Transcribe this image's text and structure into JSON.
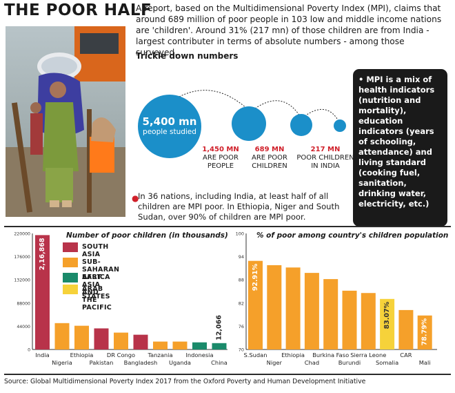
{
  "title": "THE POOR HALF",
  "intro": "A report, based on the Multidimensional Poverty Index (MPI), claims that around 689 million of poor people in 103 low and middle income nations are 'children'. Around 31% (217 mn) of those children are from India - largest contributer in terms of absolute numbers - among those surveyed.",
  "trickle": {
    "heading": "Trickle down numbers",
    "people_value": "5,400 mn",
    "people_label": "people studied",
    "items": [
      {
        "value": "1,450 MN",
        "label1": "ARE POOR",
        "label2": "PEOPLE"
      },
      {
        "value": "689 MN",
        "label1": "ARE POOR",
        "label2": "CHILDREN"
      },
      {
        "value": "217 MN",
        "label1": "POOR CHILDREN",
        "label2": "IN INDIA"
      }
    ]
  },
  "mpi_note": "• MPI is a mix of health indicators (nutrition and mortality), education indicators (years of schooling, attendance) and living standard (cooking fuel, sanitation, drinking water, electricity, etc.)",
  "nations_note": "In 36 nations, including India, at least half of all children are MPI poor. In Ethiopia, Niger and South Sudan, over 90% of children are MPI poor.",
  "source": "Source: Global Multidimensional Poverty Index 2017 from the Oxford Poverty and Human Development Initiative",
  "colors": {
    "south_asia": "#b8334a",
    "africa": "#f5a02a",
    "east_asia": "#1a8a6a",
    "arab": "#f6d23a",
    "blue": "#1b8fc9",
    "red": "#d0202a"
  },
  "chart_data": [
    {
      "type": "bar",
      "title": "Number of poor children (in thousands)",
      "categories": [
        "India",
        "Nigeria",
        "Ethiopia",
        "Pakistan",
        "DR Congo",
        "Bangladesh",
        "Tanzania",
        "Uganda",
        "Indonesia",
        "China"
      ],
      "values": [
        216868,
        50000,
        45000,
        40000,
        32000,
        28000,
        15000,
        15000,
        13500,
        12066
      ],
      "region": [
        "South Asia",
        "Sub-Saharan Africa",
        "Sub-Saharan Africa",
        "South Asia",
        "Sub-Saharan Africa",
        "South Asia",
        "Sub-Saharan Africa",
        "Sub-Saharan Africa",
        "East Asia and the Pacific",
        "East Asia and the Pacific"
      ],
      "data_labels": {
        "India": "2,16,868",
        "China": "12,066"
      },
      "yticks": [
        "0",
        "44000",
        "88000",
        "132000",
        "176000",
        "220000"
      ],
      "ylim": [
        0,
        220000
      ],
      "legend": [
        "SOUTH ASIA",
        "SUB-SAHARAN AFRICA",
        "EAST ASIA AND THE PACIFIC",
        "ARAB STATES"
      ]
    },
    {
      "type": "bar",
      "title": "% of poor among country's children population",
      "categories": [
        "S.Sudan",
        "Niger",
        "Ethiopia",
        "Chad",
        "Burkina Faso",
        "Burundi",
        "Sierra Leone",
        "Somalia",
        "CAR",
        "Mali"
      ],
      "values": [
        92.91,
        91.8,
        91.2,
        89.8,
        88.2,
        85.2,
        84.6,
        83.07,
        80.2,
        78.79
      ],
      "region": [
        "Sub-Saharan Africa",
        "Sub-Saharan Africa",
        "Sub-Saharan Africa",
        "Sub-Saharan Africa",
        "Sub-Saharan Africa",
        "Sub-Saharan Africa",
        "Sub-Saharan Africa",
        "Arab States",
        "Sub-Saharan Africa",
        "Sub-Saharan Africa"
      ],
      "data_labels": {
        "S.Sudan": "92.91%",
        "Somalia": "83.07%",
        "Mali": "78.79%"
      },
      "yticks": [
        "70",
        "76",
        "82",
        "88",
        "94",
        "100"
      ],
      "ylim": [
        70,
        100
      ]
    }
  ]
}
